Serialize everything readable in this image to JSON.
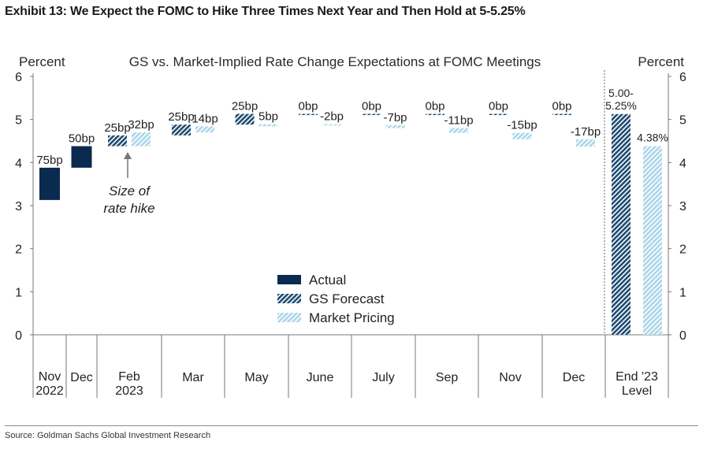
{
  "exhibit_title": "Exhibit 13: We Expect the FOMC to Hike Three Times Next Year and Then Hold at 5-5.25%",
  "source": "Source: Goldman Sachs Global Investment Research",
  "colors": {
    "actual": "#0b2a4f",
    "gs_forecast": "#1e4a72",
    "market_pricing": "#a9d6ea"
  },
  "chart_data": {
    "type": "bar",
    "subtitle": "GS vs. Market-Implied Rate Change Expectations at FOMC Meetings",
    "ylabel_left": "Percent",
    "ylabel_right": "Percent",
    "ylim": [
      0,
      6
    ],
    "yticks": [
      "0",
      "1",
      "2",
      "3",
      "4",
      "5",
      "6"
    ],
    "grid": false,
    "legend_position": "center-bottom",
    "legend": [
      {
        "key": "actual",
        "label": "Actual"
      },
      {
        "key": "gs_forecast",
        "label": "GS Forecast"
      },
      {
        "key": "market_pricing",
        "label": "Market Pricing"
      }
    ],
    "categories": [
      {
        "label": [
          "Nov",
          "2022"
        ]
      },
      {
        "label": [
          "Dec"
        ]
      },
      {
        "label": [
          "Feb",
          "2023"
        ]
      },
      {
        "label": [
          "Mar"
        ]
      },
      {
        "label": [
          "May"
        ]
      },
      {
        "label": [
          "June"
        ]
      },
      {
        "label": [
          "July"
        ]
      },
      {
        "label": [
          "Sep"
        ]
      },
      {
        "label": [
          "Nov"
        ]
      },
      {
        "label": [
          "Dec"
        ]
      },
      {
        "label": [
          "End '23",
          "Level"
        ]
      }
    ],
    "floating_bars": [
      {
        "category": 0,
        "series": "actual",
        "from": 3.13,
        "to": 3.88,
        "label": "75bp"
      },
      {
        "category": 1,
        "series": "actual",
        "from": 3.88,
        "to": 4.38,
        "label": "50bp"
      },
      {
        "category": 2,
        "series": "gs_forecast",
        "from": 4.38,
        "to": 4.63,
        "label": "25bp"
      },
      {
        "category": 2,
        "series": "market_pricing",
        "from": 4.38,
        "to": 4.7,
        "label": "32bp"
      },
      {
        "category": 3,
        "series": "gs_forecast",
        "from": 4.63,
        "to": 4.88,
        "label": "25bp"
      },
      {
        "category": 3,
        "series": "market_pricing",
        "from": 4.7,
        "to": 4.84,
        "label": "14bp"
      },
      {
        "category": 4,
        "series": "gs_forecast",
        "from": 4.88,
        "to": 5.13,
        "label": "25bp"
      },
      {
        "category": 4,
        "series": "market_pricing",
        "from": 4.84,
        "to": 4.89,
        "label": "5bp"
      },
      {
        "category": 5,
        "series": "gs_forecast",
        "from": 5.13,
        "to": 5.13,
        "label": "0bp"
      },
      {
        "category": 5,
        "series": "market_pricing",
        "from": 4.89,
        "to": 4.87,
        "label": "-2bp"
      },
      {
        "category": 6,
        "series": "gs_forecast",
        "from": 5.13,
        "to": 5.13,
        "label": "0bp"
      },
      {
        "category": 6,
        "series": "market_pricing",
        "from": 4.87,
        "to": 4.8,
        "label": "-7bp"
      },
      {
        "category": 7,
        "series": "gs_forecast",
        "from": 5.13,
        "to": 5.13,
        "label": "0bp"
      },
      {
        "category": 7,
        "series": "market_pricing",
        "from": 4.8,
        "to": 4.69,
        "label": "-11bp"
      },
      {
        "category": 8,
        "series": "gs_forecast",
        "from": 5.13,
        "to": 5.13,
        "label": "0bp"
      },
      {
        "category": 8,
        "series": "market_pricing",
        "from": 4.69,
        "to": 4.54,
        "label": "-15bp"
      },
      {
        "category": 9,
        "series": "gs_forecast",
        "from": 5.13,
        "to": 5.13,
        "label": "0bp"
      },
      {
        "category": 9,
        "series": "market_pricing",
        "from": 4.54,
        "to": 4.37,
        "label": "-17bp"
      }
    ],
    "level_bars": [
      {
        "series": "gs_forecast",
        "value": 5.125,
        "label": [
          "5.00-",
          "5.25%"
        ]
      },
      {
        "series": "market_pricing",
        "value": 4.38,
        "label": [
          "4.38%"
        ]
      }
    ],
    "annotation": {
      "text": [
        "Size of",
        "rate hike"
      ],
      "points_to_category": 2
    }
  }
}
